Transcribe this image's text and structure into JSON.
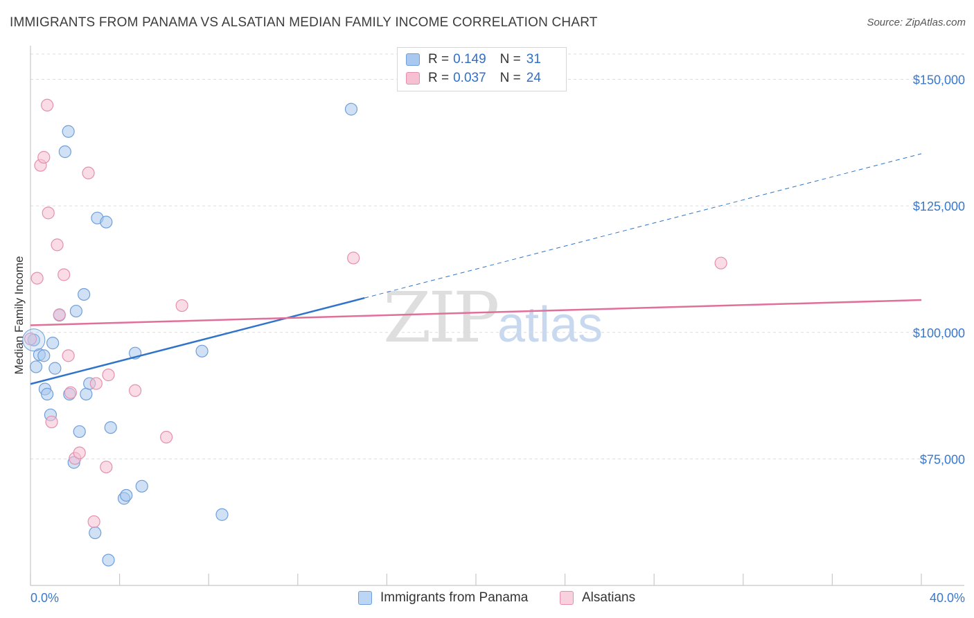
{
  "title": "IMMIGRANTS FROM PANAMA VS ALSATIAN MEDIAN FAMILY INCOME CORRELATION CHART",
  "source": "Source: ZipAtlas.com",
  "watermark": {
    "zip": "ZIP",
    "atlas": "atlas"
  },
  "legend": {
    "rows": [
      {
        "r_label": "R =",
        "r_value": "0.149",
        "n_label": "N =",
        "n_value": "31",
        "color": "#a9c8ef",
        "border": "#6f9fd9"
      },
      {
        "r_label": "R =",
        "r_value": "0.037",
        "n_label": "N =",
        "n_value": "24",
        "color": "#f6c0d2",
        "border": "#e58fae"
      }
    ]
  },
  "bottom_legend": [
    {
      "label": "Immigrants from Panama",
      "color": "#bcd5f4",
      "border": "#6f9fd9"
    },
    {
      "label": "Alsatians",
      "color": "#f9d0de",
      "border": "#e58fae"
    }
  ],
  "chart_data": {
    "type": "scatter",
    "xlabel": "",
    "ylabel": "Median Family Income",
    "xlim": [
      0,
      40
    ],
    "ylim": [
      50000,
      155000
    ],
    "x_tick_labels": [
      "0.0%",
      "40.0%"
    ],
    "y_ticks": [
      75000,
      100000,
      125000,
      150000
    ],
    "y_tick_labels": [
      "$75,000",
      "$100,000",
      "$125,000",
      "$150,000"
    ],
    "series": [
      {
        "name": "Immigrants from Panama",
        "color": "#a9c8ef",
        "stroke": "#6f9fd9",
        "line_color": "#2f74c9",
        "trend": {
          "x_start": 0,
          "y_start": 89800,
          "x_solid_end": 15,
          "y_solid_end": 106800,
          "x_end": 40,
          "y_end": 135300
        },
        "points": [
          [
            0.15,
            98500
          ],
          [
            0.25,
            93200
          ],
          [
            0.4,
            95600
          ],
          [
            0.6,
            95400
          ],
          [
            0.65,
            88800
          ],
          [
            0.75,
            87800
          ],
          [
            0.9,
            83700
          ],
          [
            1.0,
            97900
          ],
          [
            1.1,
            92900
          ],
          [
            1.3,
            103400
          ],
          [
            1.55,
            135700
          ],
          [
            1.7,
            139700
          ],
          [
            1.75,
            87800
          ],
          [
            1.95,
            74300
          ],
          [
            2.05,
            104200
          ],
          [
            2.2,
            80400
          ],
          [
            2.4,
            107500
          ],
          [
            2.5,
            87800
          ],
          [
            2.65,
            89900
          ],
          [
            2.9,
            60400
          ],
          [
            3.0,
            122600
          ],
          [
            3.4,
            121800
          ],
          [
            3.5,
            55000
          ],
          [
            3.6,
            81200
          ],
          [
            4.2,
            67200
          ],
          [
            4.3,
            67800
          ],
          [
            4.7,
            95900
          ],
          [
            5.0,
            69600
          ],
          [
            7.7,
            96300
          ],
          [
            8.6,
            64000
          ],
          [
            14.4,
            144100
          ]
        ]
      },
      {
        "name": "Alsatians",
        "color": "#f6c0d2",
        "stroke": "#e58fae",
        "line_color": "#e0709a",
        "trend": {
          "x_start": 0,
          "y_start": 101400,
          "x_end": 40,
          "y_end": 106400
        },
        "points": [
          [
            0.0,
            98700
          ],
          [
            0.3,
            110700
          ],
          [
            0.45,
            133000
          ],
          [
            0.6,
            134600
          ],
          [
            0.75,
            144900
          ],
          [
            0.8,
            123600
          ],
          [
            0.95,
            82300
          ],
          [
            1.2,
            117300
          ],
          [
            1.3,
            103500
          ],
          [
            1.5,
            111400
          ],
          [
            1.7,
            95400
          ],
          [
            1.8,
            88100
          ],
          [
            2.0,
            75100
          ],
          [
            2.2,
            76200
          ],
          [
            2.6,
            131500
          ],
          [
            2.85,
            62600
          ],
          [
            2.95,
            89900
          ],
          [
            3.4,
            73400
          ],
          [
            3.5,
            91600
          ],
          [
            4.7,
            88500
          ],
          [
            6.1,
            79300
          ],
          [
            6.8,
            105300
          ],
          [
            14.5,
            114700
          ],
          [
            31.0,
            113700
          ]
        ]
      }
    ]
  }
}
